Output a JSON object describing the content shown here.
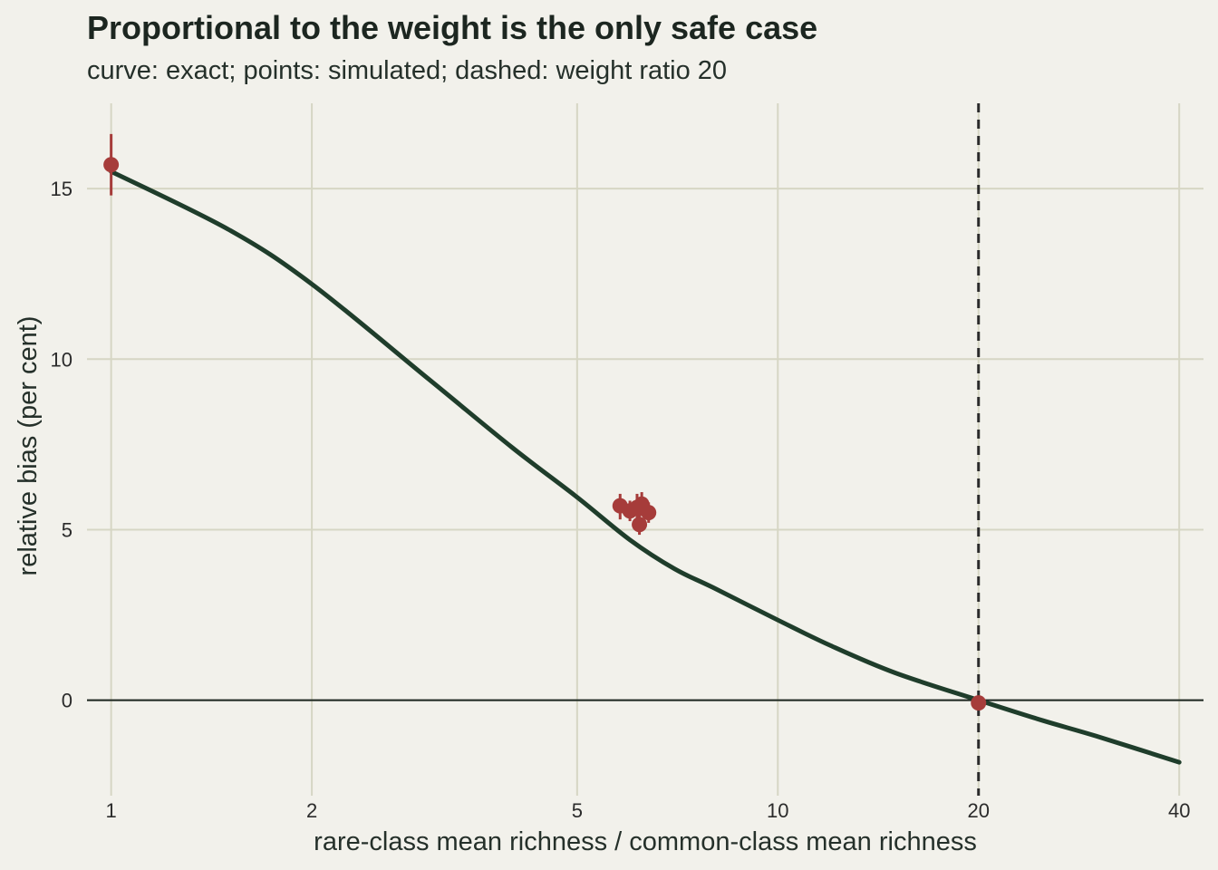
{
  "chart_data": {
    "type": "scatter",
    "title": "Proportional to the weight is the only safe case",
    "subtitle": "curve: exact; points: simulated; dashed: weight ratio 20",
    "xlabel": "rare-class mean richness / common-class mean richness",
    "ylabel": "relative bias (per cent)",
    "x_scale": "log",
    "xlim": [
      0.92,
      43.5
    ],
    "ylim": [
      -2.8,
      17.5
    ],
    "x_ticks": [
      1,
      2,
      5,
      10,
      20,
      40
    ],
    "x_tick_labels": [
      "1",
      "2",
      "5",
      "10",
      "20",
      "40"
    ],
    "y_ticks": [
      0,
      5,
      10,
      15
    ],
    "y_tick_labels": [
      "0",
      "5",
      "10",
      "15"
    ],
    "grid": true,
    "reference_lines": {
      "horizontal_solid_y": 0,
      "vertical_dashed_x": 20
    },
    "series": [
      {
        "kind": "line",
        "color": "#1f3d2b",
        "x": [
          1,
          1.5,
          2,
          3,
          4,
          5,
          6,
          7,
          8,
          10,
          12,
          15,
          20,
          25,
          30,
          40
        ],
        "y": [
          15.5,
          13.8,
          12.2,
          9.4,
          7.4,
          5.95,
          4.7,
          3.85,
          3.3,
          2.35,
          1.6,
          0.8,
          0.0,
          -0.6,
          -1.05,
          -1.82
        ]
      },
      {
        "kind": "points",
        "color": "#a63c3a",
        "x": [
          1.0,
          5.8,
          6.0,
          6.15,
          6.2,
          6.25,
          6.4,
          20.0
        ],
        "y": [
          15.7,
          5.7,
          5.55,
          5.65,
          5.15,
          5.75,
          5.5,
          -0.08
        ],
        "y_low": [
          14.8,
          5.3,
          5.25,
          5.3,
          4.85,
          5.4,
          5.2,
          -0.16
        ],
        "y_high": [
          16.6,
          6.05,
          5.85,
          6.05,
          5.45,
          6.1,
          5.8,
          0.0
        ]
      }
    ]
  }
}
